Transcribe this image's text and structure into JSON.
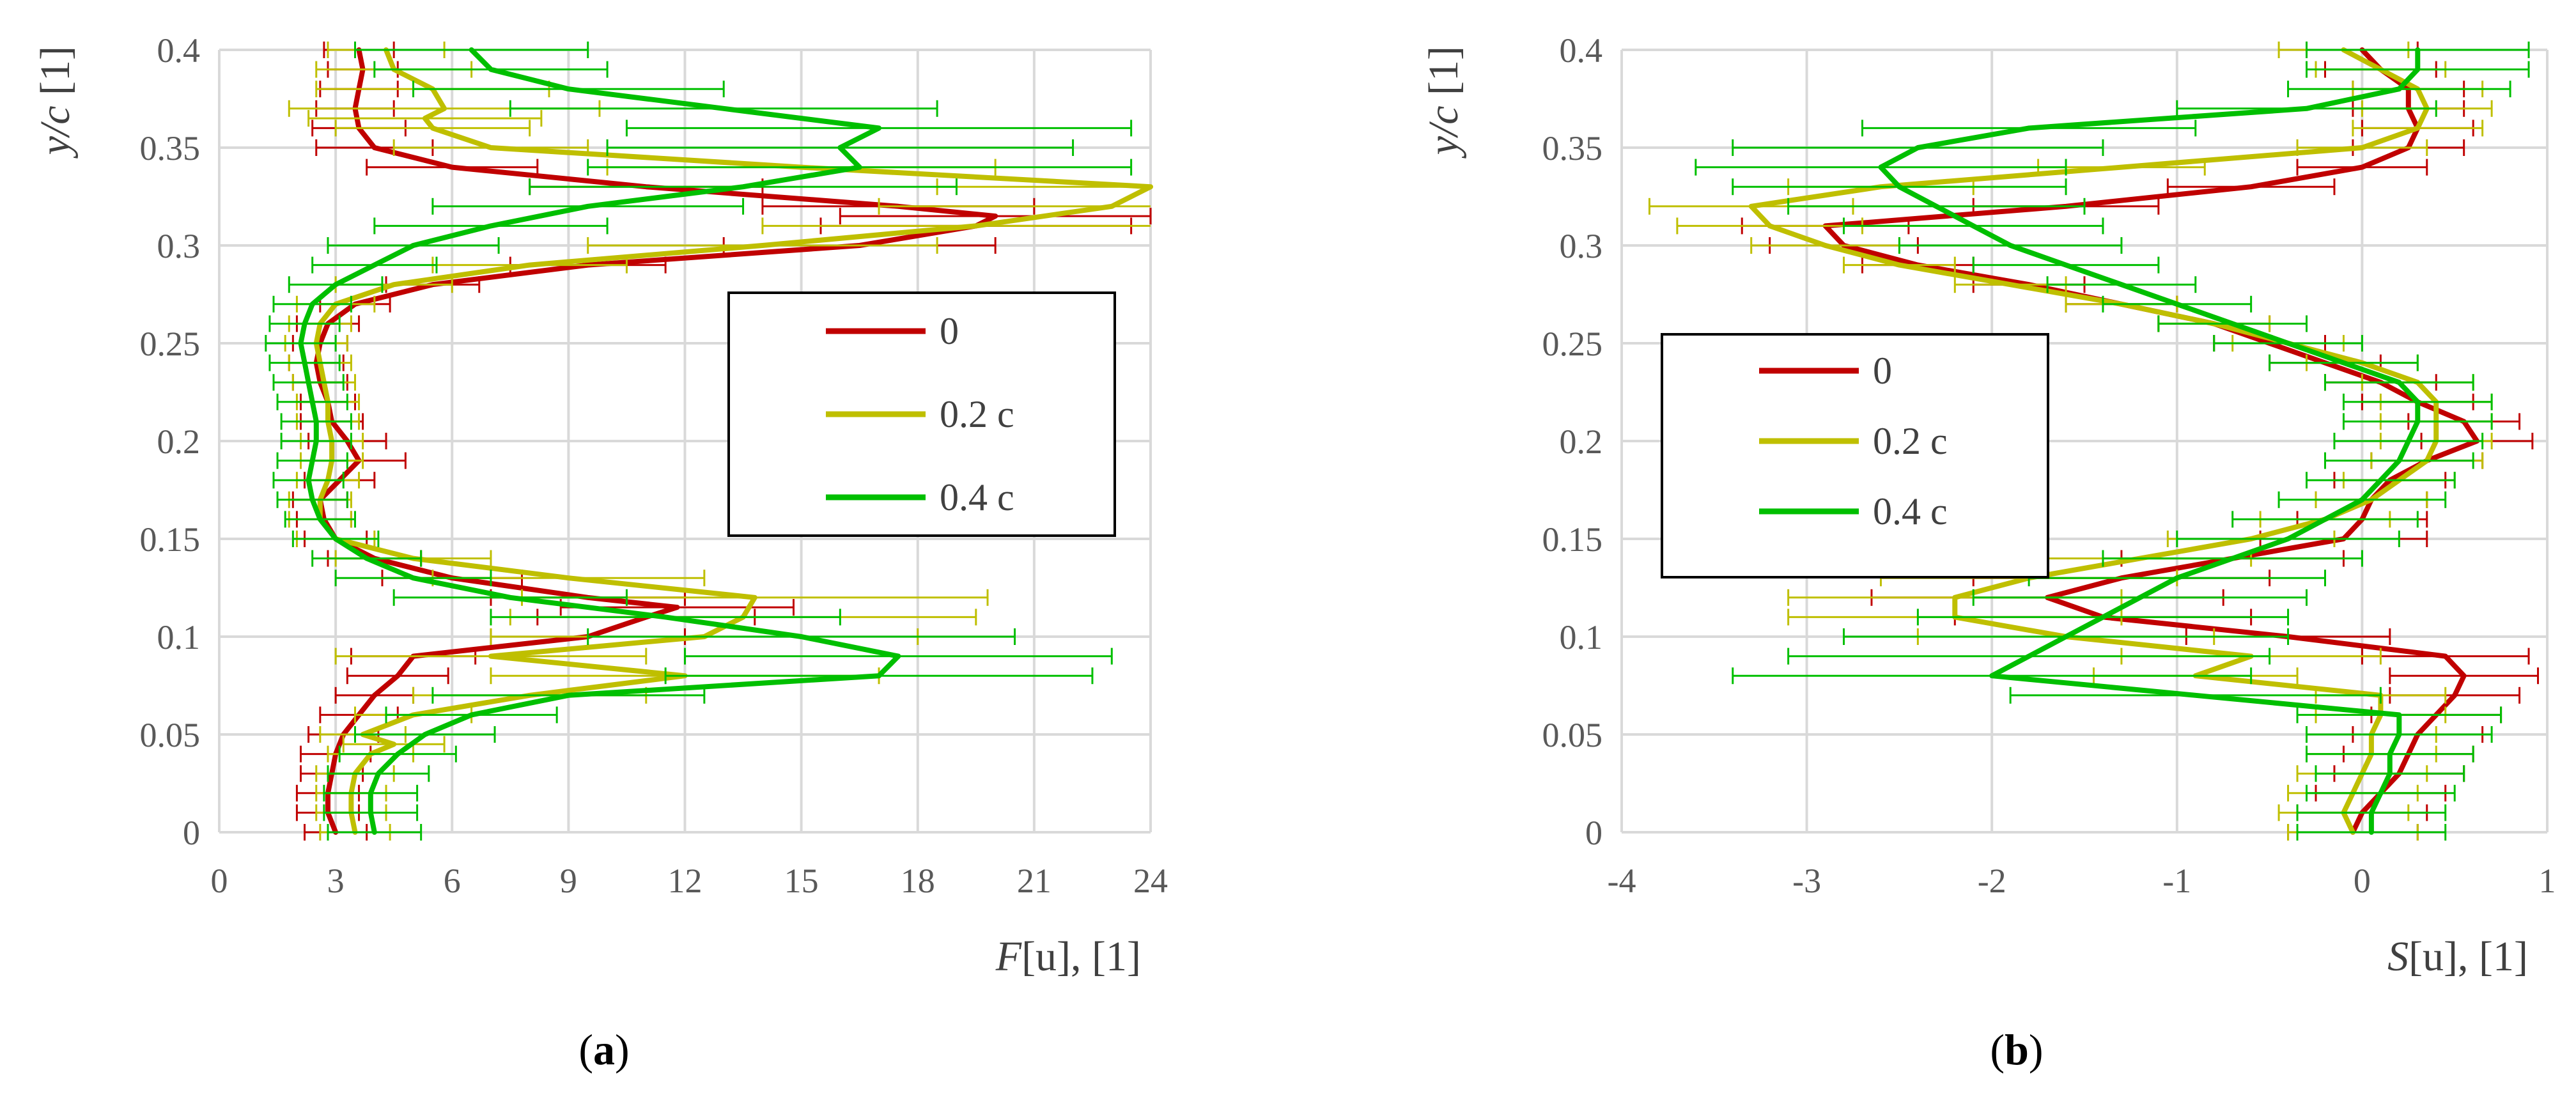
{
  "figure": {
    "panel_a": {
      "prefix": "(",
      "letter": "a",
      "suffix": ")"
    },
    "panel_b": {
      "prefix": "(",
      "letter": "b",
      "suffix": ")"
    }
  },
  "chart_data": [
    {
      "id": "a",
      "type": "line",
      "orientation": "profile",
      "xlabel_var": "F",
      "xlabel_rest": "[u], [1]",
      "ylabel_var": "y/c",
      "ylabel_rest": " [1]",
      "xlim": [
        0,
        24
      ],
      "ylim": [
        0,
        0.4
      ],
      "xticks": [
        "0",
        "3",
        "6",
        "9",
        "12",
        "15",
        "18",
        "21",
        "24"
      ],
      "yticks": [
        "0",
        "0.05",
        "0.1",
        "0.15",
        "0.2",
        "0.25",
        "0.3",
        "0.35",
        "0.4"
      ],
      "legend": {
        "position": "center-right",
        "entries": [
          "0",
          "0.2 c",
          "0.4 c"
        ]
      },
      "series": [
        {
          "name": "0",
          "color": "#c00000",
          "y": [
            0,
            0.01,
            0.02,
            0.03,
            0.04,
            0.05,
            0.06,
            0.07,
            0.08,
            0.09,
            0.1,
            0.11,
            0.115,
            0.12,
            0.13,
            0.14,
            0.15,
            0.16,
            0.17,
            0.18,
            0.19,
            0.2,
            0.21,
            0.22,
            0.23,
            0.24,
            0.25,
            0.26,
            0.27,
            0.28,
            0.29,
            0.3,
            0.31,
            0.315,
            0.32,
            0.33,
            0.34,
            0.35,
            0.36,
            0.37,
            0.38,
            0.39,
            0.4
          ],
          "x": [
            3,
            2.8,
            2.8,
            2.9,
            3.0,
            3.2,
            3.6,
            4.0,
            4.6,
            5.0,
            9.5,
            11.0,
            11.8,
            9.5,
            6.0,
            4.0,
            3.0,
            2.7,
            2.6,
            3.1,
            3.6,
            3.3,
            2.9,
            2.8,
            2.6,
            2.5,
            2.6,
            2.8,
            3.5,
            5.5,
            9.5,
            16.5,
            19.5,
            20.0,
            17.5,
            11.0,
            6.0,
            4.0,
            3.6,
            3.5,
            3.6,
            3.7,
            3.6
          ],
          "err": [
            0.8,
            0.8,
            0.8,
            0.8,
            0.9,
            0.9,
            1.0,
            1.0,
            1.3,
            1.6,
            2.5,
            2.8,
            3.0,
            2.5,
            1.8,
            1.2,
            0.8,
            0.7,
            0.7,
            0.9,
            1.2,
            1.0,
            0.8,
            0.7,
            0.7,
            0.7,
            0.7,
            0.8,
            0.9,
            1.2,
            2.0,
            3.5,
            4.0,
            4.0,
            3.5,
            3.0,
            2.2,
            1.5,
            1.2,
            1.0,
            1.0,
            0.9,
            0.9
          ]
        },
        {
          "name": "0.2 c",
          "color": "#bfbf00",
          "y": [
            0,
            0.01,
            0.02,
            0.03,
            0.04,
            0.045,
            0.05,
            0.06,
            0.07,
            0.08,
            0.09,
            0.1,
            0.11,
            0.12,
            0.13,
            0.14,
            0.15,
            0.16,
            0.17,
            0.18,
            0.19,
            0.2,
            0.21,
            0.22,
            0.23,
            0.24,
            0.25,
            0.26,
            0.27,
            0.28,
            0.29,
            0.3,
            0.31,
            0.32,
            0.33,
            0.34,
            0.35,
            0.36,
            0.365,
            0.37,
            0.38,
            0.39,
            0.4
          ],
          "x": [
            3.5,
            3.4,
            3.4,
            3.5,
            3.9,
            4.5,
            3.7,
            5.0,
            8.0,
            12.0,
            7.0,
            12.5,
            13.5,
            13.8,
            9.0,
            5.0,
            3.0,
            2.6,
            2.6,
            2.8,
            2.9,
            2.9,
            2.8,
            2.8,
            2.7,
            2.6,
            2.5,
            2.6,
            3.0,
            4.5,
            8.0,
            14.0,
            19.5,
            23.0,
            24.5,
            15.0,
            7.0,
            5.5,
            5.3,
            5.8,
            5.5,
            4.5,
            4.3
          ],
          "err": [
            0.9,
            0.9,
            0.9,
            1.0,
            1.1,
            1.3,
            1.1,
            1.5,
            3.0,
            5.0,
            4.0,
            5.5,
            6.0,
            6.0,
            3.5,
            2.0,
            1.0,
            0.8,
            0.8,
            0.8,
            0.8,
            0.8,
            0.8,
            0.8,
            0.8,
            0.8,
            0.8,
            0.8,
            1.0,
            1.5,
            2.5,
            4.5,
            5.5,
            6.0,
            6.0,
            5.0,
            2.5,
            2.5,
            3.0,
            4.0,
            3.0,
            2.0,
            1.5
          ]
        },
        {
          "name": "0.4 c",
          "color": "#00bf00",
          "y": [
            0,
            0.01,
            0.02,
            0.03,
            0.04,
            0.05,
            0.06,
            0.07,
            0.08,
            0.09,
            0.1,
            0.11,
            0.12,
            0.13,
            0.14,
            0.15,
            0.16,
            0.17,
            0.18,
            0.19,
            0.2,
            0.21,
            0.22,
            0.23,
            0.24,
            0.25,
            0.26,
            0.27,
            0.28,
            0.29,
            0.3,
            0.31,
            0.32,
            0.33,
            0.34,
            0.35,
            0.36,
            0.37,
            0.38,
            0.39,
            0.4
          ],
          "x": [
            4.0,
            3.9,
            3.9,
            4.1,
            4.6,
            5.3,
            6.5,
            9.0,
            17.0,
            17.5,
            15.0,
            11.5,
            7.5,
            5.0,
            3.8,
            3.0,
            2.6,
            2.4,
            2.3,
            2.4,
            2.5,
            2.5,
            2.4,
            2.3,
            2.2,
            2.1,
            2.2,
            2.4,
            3.0,
            4.0,
            5.0,
            7.0,
            9.5,
            13.5,
            16.5,
            16.0,
            17.0,
            13.0,
            9.0,
            7.0,
            6.5
          ],
          "err": [
            1.2,
            1.2,
            1.2,
            1.3,
            1.5,
            1.8,
            2.2,
            3.5,
            5.5,
            5.5,
            5.5,
            4.5,
            3.0,
            2.0,
            1.4,
            1.1,
            0.9,
            0.9,
            0.9,
            0.9,
            0.9,
            0.9,
            0.9,
            0.9,
            0.9,
            0.9,
            0.9,
            1.0,
            1.2,
            1.6,
            2.2,
            3.0,
            4.0,
            5.5,
            7.0,
            6.0,
            6.5,
            5.5,
            4.0,
            3.0,
            3.0
          ]
        }
      ]
    },
    {
      "id": "b",
      "type": "line",
      "orientation": "profile",
      "xlabel_var": "S",
      "xlabel_rest": "[u], [1]",
      "ylabel_var": "y/c",
      "ylabel_rest": " [1]",
      "xlim": [
        -4,
        1
      ],
      "ylim": [
        0,
        0.4
      ],
      "xticks": [
        "-4",
        "-3",
        "-2",
        "-1",
        "0",
        "1"
      ],
      "yticks": [
        "0",
        "0.05",
        "0.1",
        "0.15",
        "0.2",
        "0.25",
        "0.3",
        "0.35",
        "0.4"
      ],
      "legend": {
        "position": "center-left",
        "entries": [
          "0",
          "0.2 c",
          "0.4 c"
        ]
      },
      "series": [
        {
          "name": "0",
          "color": "#c00000",
          "y": [
            0,
            0.01,
            0.02,
            0.03,
            0.04,
            0.05,
            0.06,
            0.07,
            0.08,
            0.09,
            0.1,
            0.11,
            0.12,
            0.13,
            0.14,
            0.15,
            0.16,
            0.17,
            0.18,
            0.19,
            0.2,
            0.21,
            0.22,
            0.23,
            0.24,
            0.25,
            0.26,
            0.27,
            0.28,
            0.29,
            0.3,
            0.31,
            0.32,
            0.33,
            0.34,
            0.35,
            0.36,
            0.37,
            0.38,
            0.39,
            0.4
          ],
          "x": [
            -0.05,
            0.0,
            0.1,
            0.2,
            0.25,
            0.3,
            0.4,
            0.5,
            0.55,
            0.45,
            -0.4,
            -1.4,
            -1.7,
            -1.3,
            -0.7,
            -0.1,
            0.0,
            0.05,
            0.15,
            0.35,
            0.62,
            0.55,
            0.3,
            0.1,
            -0.2,
            -0.5,
            -0.8,
            -1.3,
            -1.8,
            -2.4,
            -2.8,
            -2.9,
            -1.6,
            -0.6,
            0.0,
            0.25,
            0.3,
            0.25,
            0.25,
            0.1,
            0.0
          ],
          "err": [
            0.35,
            0.35,
            0.35,
            0.35,
            0.35,
            0.35,
            0.35,
            0.35,
            0.4,
            0.45,
            0.55,
            0.8,
            0.95,
            0.8,
            0.6,
            0.45,
            0.35,
            0.3,
            0.3,
            0.3,
            0.3,
            0.3,
            0.3,
            0.3,
            0.3,
            0.3,
            0.3,
            0.3,
            0.3,
            0.3,
            0.4,
            0.45,
            0.5,
            0.45,
            0.35,
            0.3,
            0.3,
            0.3,
            0.3,
            0.3,
            0.3
          ]
        },
        {
          "name": "0.2 c",
          "color": "#bfbf00",
          "y": [
            0,
            0.01,
            0.02,
            0.03,
            0.04,
            0.05,
            0.06,
            0.07,
            0.08,
            0.09,
            0.1,
            0.11,
            0.12,
            0.13,
            0.14,
            0.15,
            0.16,
            0.17,
            0.18,
            0.19,
            0.2,
            0.21,
            0.22,
            0.23,
            0.24,
            0.25,
            0.26,
            0.27,
            0.28,
            0.29,
            0.3,
            0.31,
            0.32,
            0.33,
            0.34,
            0.35,
            0.36,
            0.37,
            0.38,
            0.39,
            0.4
          ],
          "x": [
            -0.05,
            -0.1,
            -0.05,
            0.0,
            0.05,
            0.05,
            0.1,
            0.1,
            -0.9,
            -0.6,
            -1.6,
            -2.2,
            -2.2,
            -1.8,
            -1.2,
            -0.6,
            -0.2,
            0.05,
            0.2,
            0.35,
            0.4,
            0.4,
            0.4,
            0.3,
            0.0,
            -0.4,
            -0.8,
            -1.3,
            -1.9,
            -2.5,
            -2.9,
            -3.2,
            -3.3,
            -2.6,
            -1.3,
            0.0,
            0.3,
            0.35,
            0.3,
            0.1,
            -0.1
          ],
          "err": [
            0.35,
            0.35,
            0.35,
            0.35,
            0.35,
            0.35,
            0.35,
            0.35,
            0.55,
            0.7,
            0.8,
            0.9,
            0.9,
            0.8,
            0.6,
            0.45,
            0.35,
            0.3,
            0.3,
            0.3,
            0.3,
            0.3,
            0.3,
            0.3,
            0.3,
            0.3,
            0.3,
            0.3,
            0.3,
            0.3,
            0.4,
            0.5,
            0.55,
            0.5,
            0.45,
            0.35,
            0.35,
            0.35,
            0.35,
            0.35,
            0.35
          ]
        },
        {
          "name": "0.4 c",
          "color": "#00bf00",
          "y": [
            0,
            0.01,
            0.02,
            0.03,
            0.04,
            0.05,
            0.06,
            0.07,
            0.08,
            0.09,
            0.1,
            0.11,
            0.12,
            0.13,
            0.14,
            0.15,
            0.16,
            0.17,
            0.18,
            0.19,
            0.2,
            0.21,
            0.22,
            0.23,
            0.24,
            0.25,
            0.26,
            0.27,
            0.28,
            0.29,
            0.3,
            0.31,
            0.32,
            0.33,
            0.34,
            0.35,
            0.36,
            0.37,
            0.38,
            0.39,
            0.4
          ],
          "x": [
            0.05,
            0.05,
            0.1,
            0.15,
            0.15,
            0.2,
            0.2,
            -0.9,
            -2.0,
            -1.8,
            -1.6,
            -1.4,
            -1.2,
            -1.0,
            -0.7,
            -0.4,
            -0.2,
            0.0,
            0.1,
            0.2,
            0.25,
            0.3,
            0.3,
            0.2,
            -0.1,
            -0.4,
            -0.7,
            -1.0,
            -1.3,
            -1.6,
            -1.9,
            -2.1,
            -2.3,
            -2.5,
            -2.6,
            -2.4,
            -1.8,
            -0.3,
            0.2,
            0.3,
            0.3
          ],
          "err": [
            0.4,
            0.4,
            0.4,
            0.4,
            0.45,
            0.5,
            0.55,
            1.0,
            1.4,
            1.3,
            1.2,
            1.0,
            0.9,
            0.8,
            0.7,
            0.6,
            0.5,
            0.45,
            0.4,
            0.4,
            0.4,
            0.4,
            0.4,
            0.4,
            0.4,
            0.4,
            0.4,
            0.4,
            0.4,
            0.5,
            0.6,
            0.7,
            0.8,
            0.9,
            1.0,
            1.0,
            0.9,
            0.7,
            0.6,
            0.6,
            0.6
          ]
        }
      ]
    }
  ]
}
